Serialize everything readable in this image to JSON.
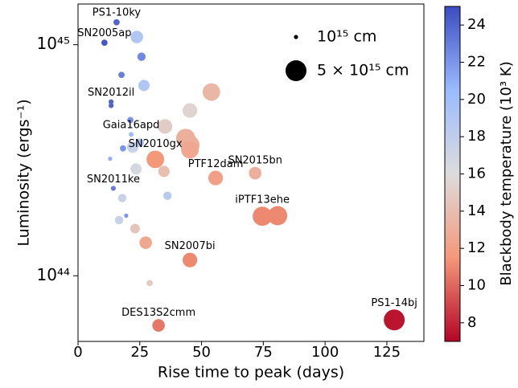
{
  "chart_data": {
    "type": "scatter",
    "xlabel": "Rise time to peak (days)",
    "ylabel": "Luminosity (ergs⁻¹)",
    "colorbar_label": "Blackbody temperature (10³ K)",
    "x": [
      15.6,
      10.7,
      23.8,
      25.7,
      17.6,
      26.7,
      54,
      13.4,
      13.4,
      45.3,
      21.2,
      35.2,
      21.5,
      43.6,
      45.3,
      45.3,
      22.1,
      18.2,
      25,
      13,
      31.3,
      23.5,
      34.8,
      71.7,
      55.7,
      14.3,
      36.2,
      17.9,
      19.5,
      74.6,
      80.8,
      16.6,
      23.1,
      27.4,
      45.3,
      29,
      32.6,
      128
    ],
    "values": [
      1.25e+45,
      1.02e+45,
      1.08e+45,
      8.87e+44,
      7.4e+44,
      6.66e+44,
      6.24e+44,
      5.66e+44,
      5.45e+44,
      5.19e+44,
      4.72e+44,
      4.43e+44,
      4.09e+44,
      3.93e+44,
      3.68e+44,
      3.51e+44,
      3.6e+44,
      3.56e+44,
      3.77e+44,
      3.21e+44,
      3.19e+44,
      2.9e+44,
      2.83e+44,
      2.78e+44,
      2.65e+44,
      2.39e+44,
      2.22e+44,
      2.17e+44,
      1.82e+44,
      1.81e+44,
      1.82e+44,
      1.74e+44,
      1.6e+44,
      1.39e+44,
      1.17e+44,
      9.3e+43,
      6.1e+43,
      6.44e+43
    ],
    "sizes": [
      1.5,
      1.5,
      3,
      2,
      1.5,
      2.7,
      4.2,
      1.2,
      1.2,
      3.5,
      1.5,
      3.5,
      1.2,
      4.6,
      4.6,
      4.2,
      2.7,
      1.5,
      2,
      1,
      4.2,
      2.7,
      2.7,
      3,
      3.5,
      1.2,
      2,
      2,
      1,
      4.6,
      4.6,
      2,
      2.3,
      3,
      3.5,
      1.5,
      3,
      5
    ],
    "temperatures": [
      24,
      24.5,
      19,
      22.5,
      23,
      19,
      13.5,
      24,
      24,
      15.5,
      22,
      15,
      20,
      13,
      13,
      12.5,
      17.5,
      22,
      19,
      21,
      11.5,
      16.5,
      14,
      13,
      12,
      23,
      18.5,
      17.5,
      22,
      11,
      11,
      17.5,
      14.5,
      12.5,
      11,
      14.8,
      10.5,
      7.5
    ],
    "labels": [
      "PS1-10ky",
      "SN2005ap",
      null,
      null,
      null,
      null,
      null,
      "SN2012il",
      null,
      null,
      null,
      null,
      "Gaia16apd",
      null,
      null,
      null,
      null,
      null,
      null,
      null,
      "SN2010gx",
      null,
      null,
      "SN2015bn",
      "PTF12dam",
      "SN2011ke",
      null,
      null,
      null,
      "iPTF13ehe",
      null,
      null,
      null,
      null,
      "SN2007bi",
      null,
      "DES13S2cmm",
      "PS1-14bj"
    ],
    "xlim": [
      0,
      140
    ],
    "xticks": [
      0,
      25,
      50,
      75,
      100,
      125
    ],
    "ylim": [
      5.2e+43,
      1.5e+45
    ],
    "yscale": "log",
    "yticks": [
      {
        "value": 1e+44,
        "label": "10⁴⁴"
      },
      {
        "value": 1e+45,
        "label": "10⁴⁵"
      }
    ],
    "clim": [
      7,
      25
    ],
    "cticks": [
      8,
      10,
      12,
      14,
      16,
      18,
      20,
      22,
      24
    ],
    "colormap": [
      "#b40426",
      "#f4987a",
      "#dddcdc",
      "#9abbff",
      "#3b4cc0"
    ],
    "size_legend": [
      {
        "size": 1,
        "label": "10¹⁵ cm"
      },
      {
        "size": 5,
        "label": "5 × 10¹⁵ cm"
      }
    ]
  }
}
